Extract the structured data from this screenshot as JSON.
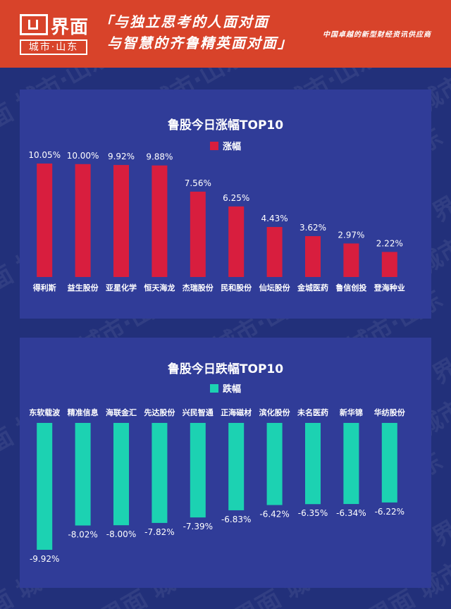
{
  "header": {
    "logo_text": "界面",
    "logo_sub": "城市·山东",
    "slogan_line1": "「与独立思考的人面对面",
    "slogan_line2": "与智慧的齐鲁精英面对面」",
    "tagline": "中国卓越的新型财经资讯供应商",
    "brand_color": "#d8432a",
    "background_color": "#22307a"
  },
  "watermark_text": "界面 城市·山东",
  "chart_data": [
    {
      "type": "bar",
      "title": "鲁股今日涨幅TOP10",
      "categories": [
        "得利斯",
        "益生股份",
        "亚星化学",
        "恒天海龙",
        "杰瑞股份",
        "民和股份",
        "仙坛股份",
        "金城医药",
        "鲁信创投",
        "登海种业"
      ],
      "series": [
        {
          "name": "涨幅",
          "values": [
            10.05,
            10.0,
            9.92,
            9.88,
            7.56,
            6.25,
            4.43,
            3.62,
            2.97,
            2.22
          ],
          "labels": [
            "10.05%",
            "10.00%",
            "9.92%",
            "9.88%",
            "7.56%",
            "6.25%",
            "4.43%",
            "3.62%",
            "2.97%",
            "2.22%"
          ],
          "color": "#d81e3e"
        }
      ],
      "ylim": [
        0,
        10.05
      ],
      "grid": false,
      "legend": "top-center"
    },
    {
      "type": "bar",
      "title": "鲁股今日跌幅TOP10",
      "categories": [
        "东软载波",
        "精准信息",
        "海联金汇",
        "先达股份",
        "兴民智通",
        "正海磁材",
        "滨化股份",
        "未名医药",
        "新华锦",
        "华纺股份"
      ],
      "series": [
        {
          "name": "跌幅",
          "values": [
            -9.92,
            -8.02,
            -8.0,
            -7.82,
            -7.39,
            -6.83,
            -6.42,
            -6.35,
            -6.34,
            -6.22
          ],
          "labels": [
            "-9.92%",
            "-8.02%",
            "-8.00%",
            "-7.82%",
            "-7.39%",
            "-6.83%",
            "-6.42%",
            "-6.35%",
            "-6.34%",
            "-6.22%"
          ],
          "color": "#1cd2b2"
        }
      ],
      "ylim": [
        -9.92,
        0
      ],
      "grid": false,
      "legend": "top-center"
    }
  ]
}
